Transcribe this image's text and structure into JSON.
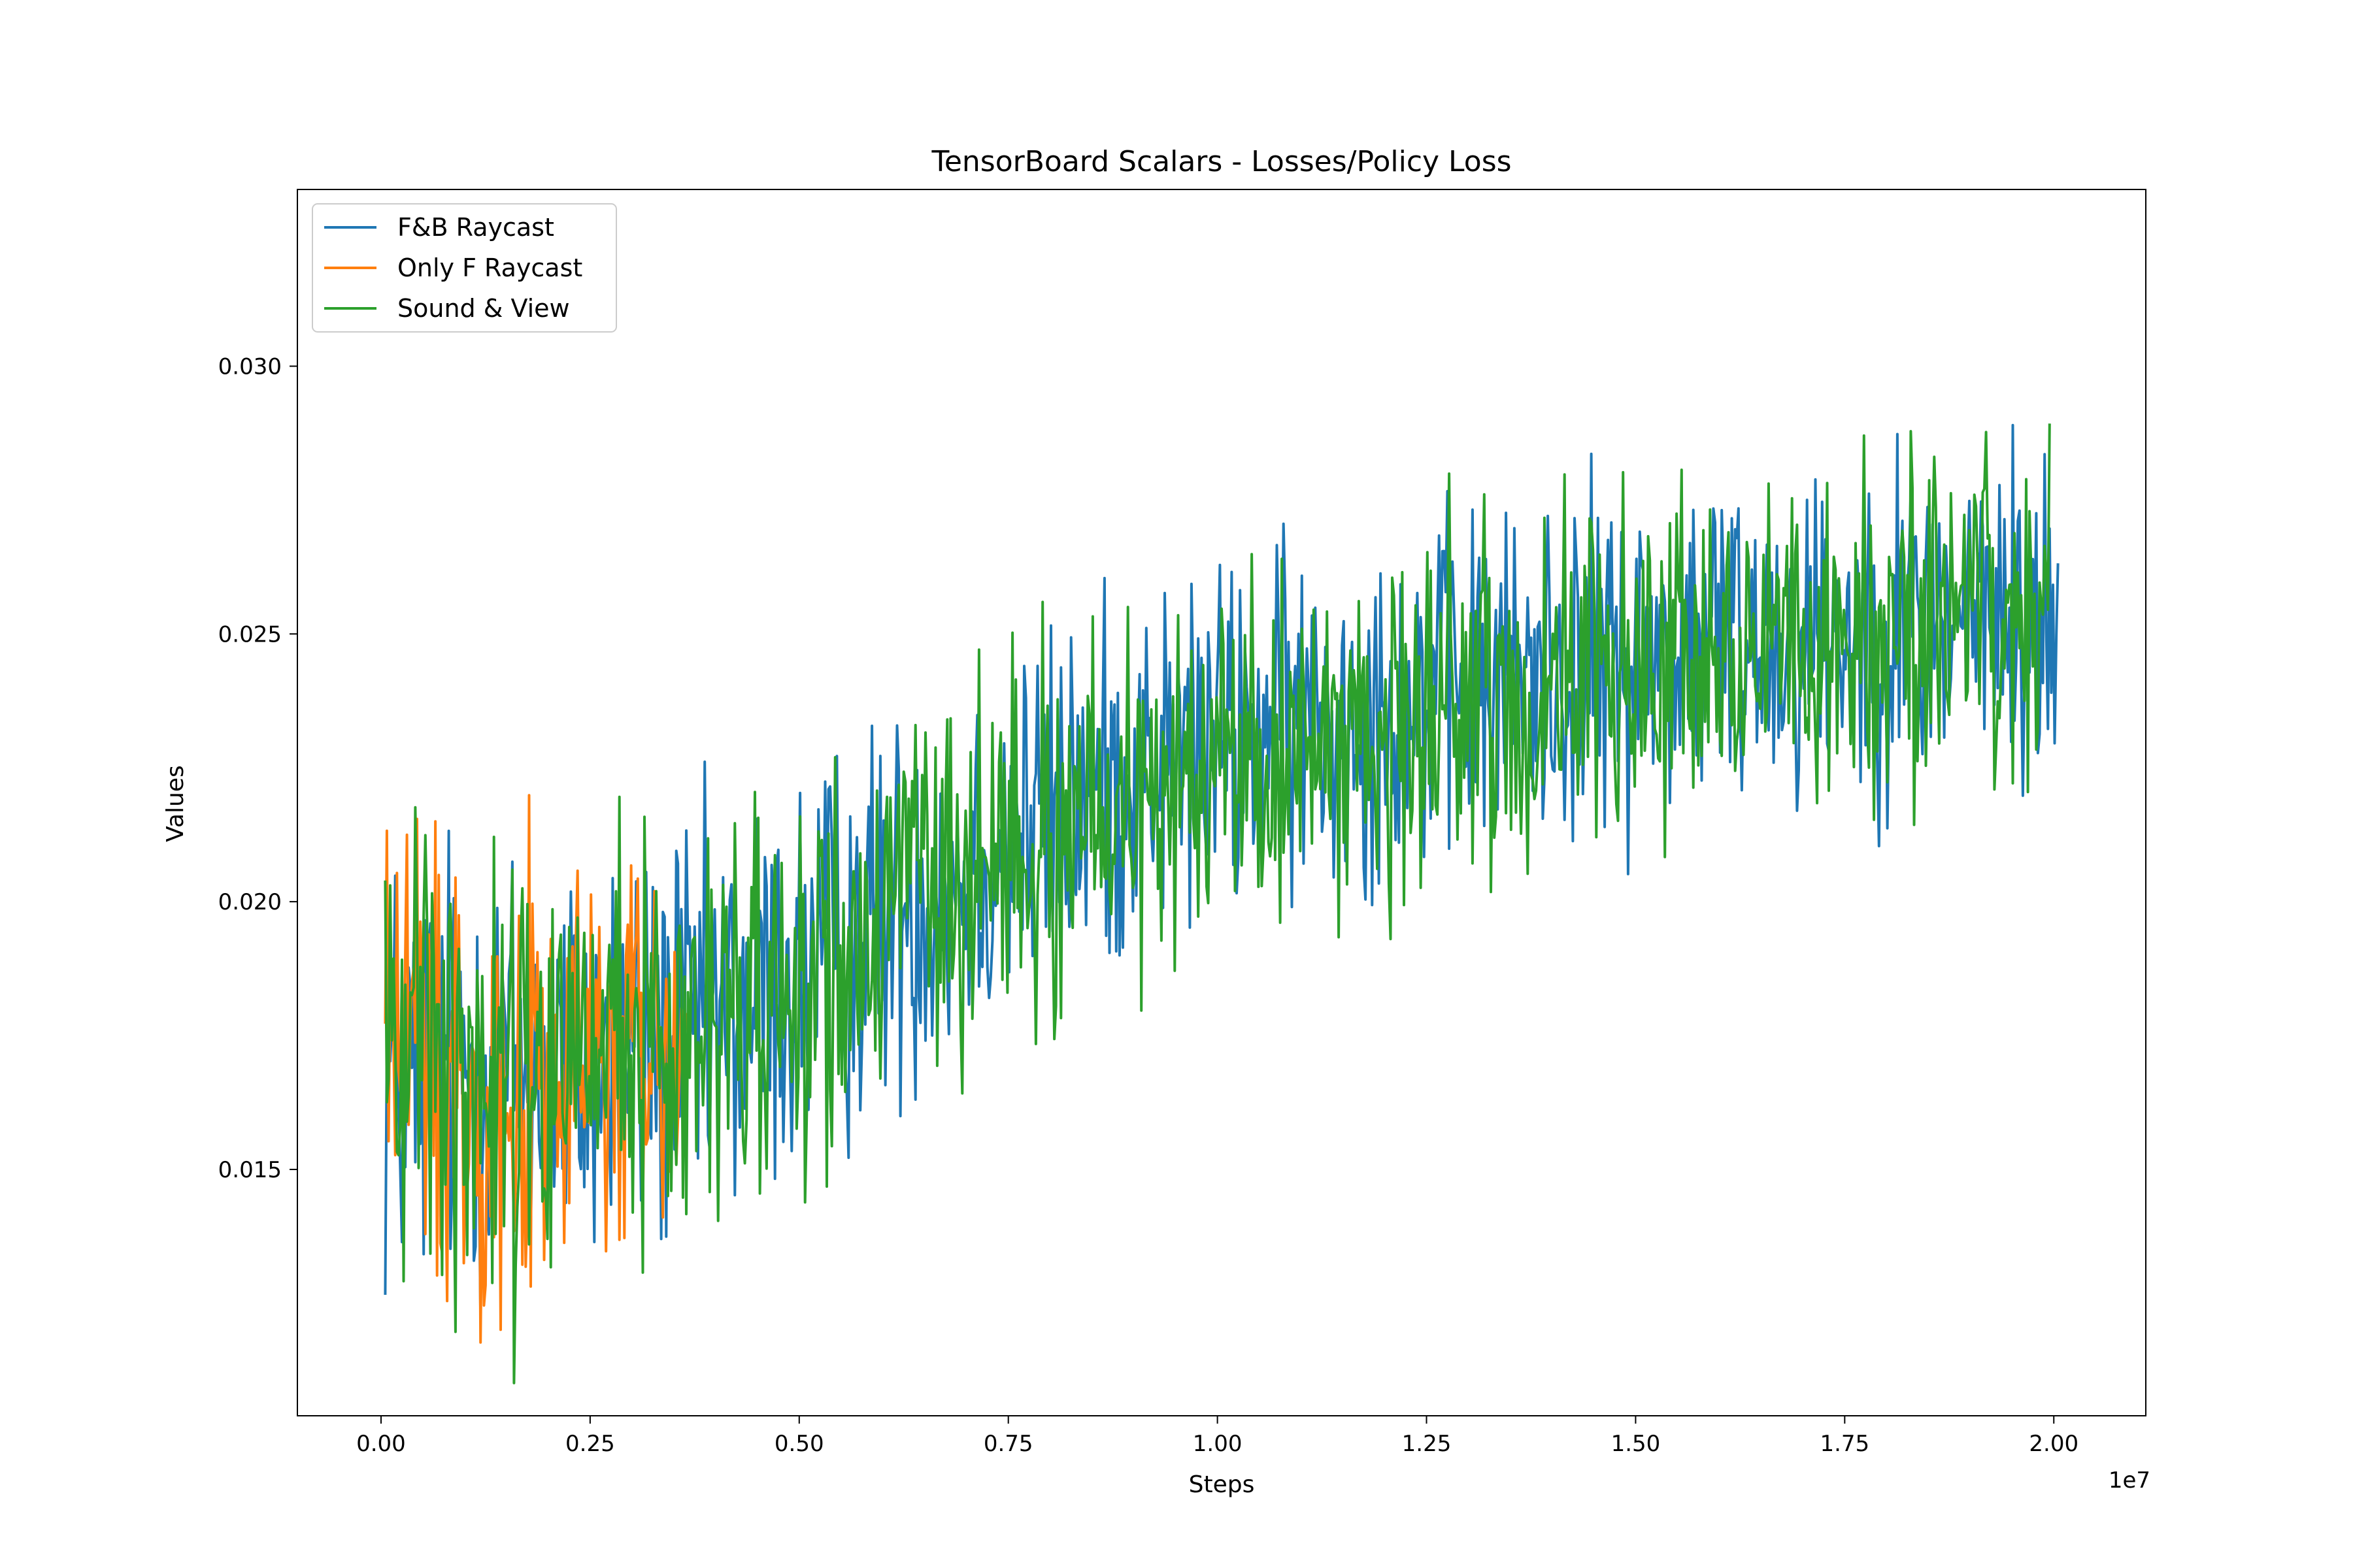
{
  "chart_data": {
    "type": "line",
    "title": "TensorBoard Scalars - Losses/Policy Loss",
    "xlabel": "Steps",
    "ylabel": "Values",
    "x_offset_label": "1e7",
    "x_scale": 10000000,
    "xlim": [
      -0.1,
      2.11
    ],
    "ylim": [
      0.0104,
      0.0333
    ],
    "x_ticks": [
      0.0,
      0.25,
      0.5,
      0.75,
      1.0,
      1.25,
      1.5,
      1.75,
      2.0
    ],
    "x_tick_labels": [
      "0.00",
      "0.25",
      "0.50",
      "0.75",
      "1.00",
      "1.25",
      "1.50",
      "1.75",
      "2.00"
    ],
    "y_ticks": [
      0.015,
      0.02,
      0.025,
      0.03
    ],
    "y_tick_labels": [
      "0.015",
      "0.020",
      "0.025",
      "0.030"
    ],
    "grid": false,
    "legend_position": "top-left",
    "series": [
      {
        "name": "F&B Raycast",
        "color": "#1f77b4",
        "x": [
          0.005,
          0.1,
          0.2,
          0.3,
          0.4,
          0.5,
          0.6,
          0.7,
          0.8,
          0.9,
          1.0,
          1.1,
          1.2,
          1.3,
          1.4,
          1.5,
          1.6,
          1.7,
          1.8,
          1.9,
          2.0,
          2.005
        ],
        "y": [
          0.0167,
          0.0171,
          0.0168,
          0.0172,
          0.0176,
          0.0186,
          0.0197,
          0.0207,
          0.0216,
          0.0224,
          0.023,
          0.0234,
          0.0237,
          0.024,
          0.0243,
          0.0246,
          0.0249,
          0.0251,
          0.0252,
          0.0254,
          0.0252,
          0.0245
        ]
      },
      {
        "name": "Only F Raycast",
        "color": "#ff7f0e",
        "x": [
          0.005,
          0.05,
          0.1,
          0.15,
          0.2,
          0.25,
          0.3,
          0.35,
          0.365
        ],
        "y": [
          0.0183,
          0.0172,
          0.0168,
          0.0166,
          0.0167,
          0.0169,
          0.0171,
          0.017,
          0.0168
        ]
      },
      {
        "name": "Sound & View",
        "color": "#2ca02c",
        "x": [
          0.005,
          0.1,
          0.2,
          0.3,
          0.4,
          0.5,
          0.6,
          0.7,
          0.8,
          0.9,
          1.0,
          1.1,
          1.2,
          1.3,
          1.4,
          1.5,
          1.6,
          1.7,
          1.8,
          1.9,
          1.995
        ],
        "y": [
          0.0179,
          0.0172,
          0.017,
          0.0173,
          0.0178,
          0.0186,
          0.0195,
          0.0204,
          0.0212,
          0.0219,
          0.0225,
          0.0229,
          0.0233,
          0.0236,
          0.0239,
          0.0242,
          0.0244,
          0.0246,
          0.0248,
          0.025,
          0.0254
        ]
      }
    ]
  }
}
